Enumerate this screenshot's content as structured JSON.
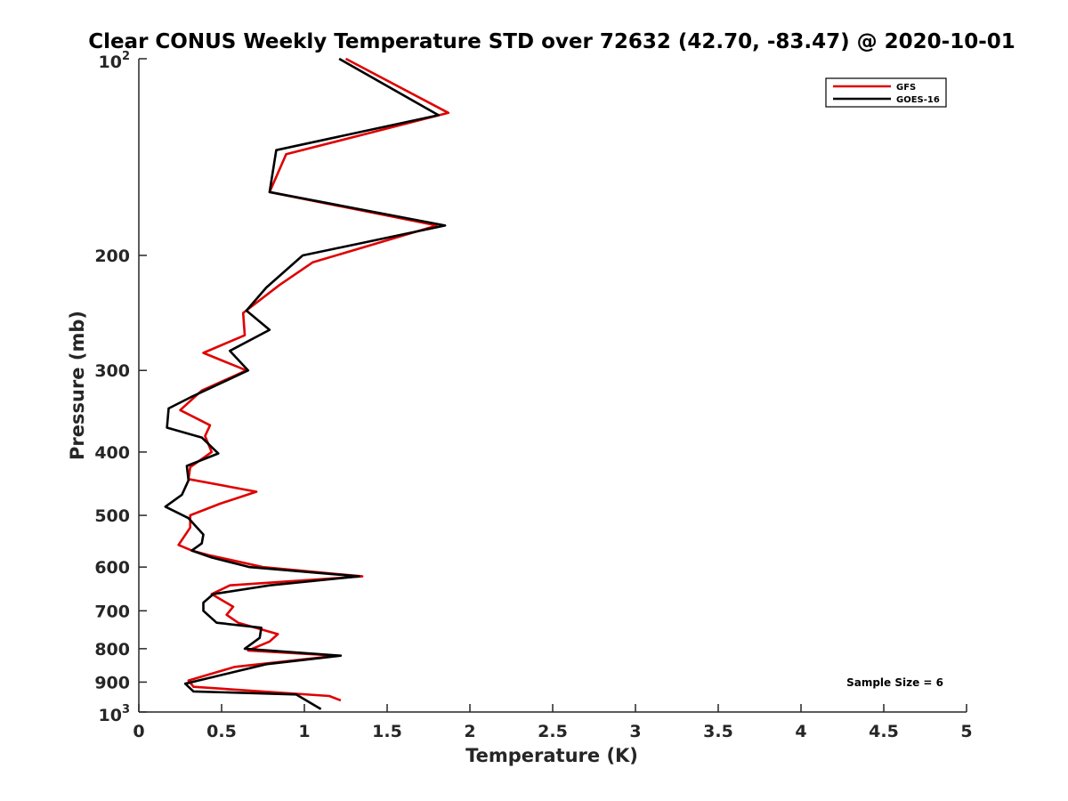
{
  "chart_data": {
    "type": "line",
    "title": "Clear CONUS Weekly Temperature STD over 72632 (42.70, -83.47) @ 2020-10-01",
    "xlabel": "Temperature (K)",
    "ylabel": "Pressure (mb)",
    "xlim": [
      0,
      5
    ],
    "ylim": [
      1000,
      100
    ],
    "y_scale": "log",
    "y_reversed": true,
    "grid": false,
    "legend_position": "top-right",
    "x_ticks": [
      "0",
      "0.5",
      "1",
      "1.5",
      "2",
      "2.5",
      "3",
      "3.5",
      "4",
      "4.5",
      "5"
    ],
    "y_ticks": [
      {
        "value": 100,
        "base": "10",
        "exp": "2"
      },
      {
        "value": 200,
        "label": "200"
      },
      {
        "value": 300,
        "label": "300"
      },
      {
        "value": 400,
        "label": "400"
      },
      {
        "value": 500,
        "label": "500"
      },
      {
        "value": 600,
        "label": "600"
      },
      {
        "value": 700,
        "label": "700"
      },
      {
        "value": 800,
        "label": "800"
      },
      {
        "value": 900,
        "label": "900"
      },
      {
        "value": 1000,
        "base": "10",
        "exp": "3"
      }
    ],
    "annotation": "Sample Size = 6",
    "series": [
      {
        "name": "GFS",
        "color": "#e00000",
        "points": [
          [
            1.25,
            100
          ],
          [
            1.87,
            121
          ],
          [
            0.89,
            140
          ],
          [
            0.79,
            160
          ],
          [
            1.8,
            180
          ],
          [
            1.05,
            205
          ],
          [
            0.85,
            222
          ],
          [
            0.63,
            245
          ],
          [
            0.64,
            265
          ],
          [
            0.39,
            282
          ],
          [
            0.65,
            300
          ],
          [
            0.38,
            322
          ],
          [
            0.25,
            345
          ],
          [
            0.43,
            364
          ],
          [
            0.4,
            378
          ],
          [
            0.44,
            400
          ],
          [
            0.31,
            422
          ],
          [
            0.3,
            440
          ],
          [
            0.71,
            460
          ],
          [
            0.49,
            480
          ],
          [
            0.31,
            500
          ],
          [
            0.31,
            522
          ],
          [
            0.24,
            555
          ],
          [
            0.32,
            566
          ],
          [
            0.42,
            575
          ],
          [
            0.75,
            600
          ],
          [
            1.35,
            620
          ],
          [
            0.55,
            640
          ],
          [
            0.44,
            660
          ],
          [
            0.57,
            690
          ],
          [
            0.53,
            710
          ],
          [
            0.6,
            730
          ],
          [
            0.84,
            760
          ],
          [
            0.79,
            780
          ],
          [
            0.66,
            805
          ],
          [
            1.2,
            820
          ],
          [
            0.58,
            853
          ],
          [
            0.3,
            895
          ],
          [
            0.33,
            915
          ],
          [
            1.15,
            945
          ],
          [
            1.22,
            960
          ]
        ]
      },
      {
        "name": "GOES-16",
        "color": "#000000",
        "points": [
          [
            1.21,
            100
          ],
          [
            1.81,
            122
          ],
          [
            0.83,
            138
          ],
          [
            0.79,
            160
          ],
          [
            1.85,
            180
          ],
          [
            0.99,
            200
          ],
          [
            0.77,
            224
          ],
          [
            0.65,
            243
          ],
          [
            0.79,
            260
          ],
          [
            0.55,
            280
          ],
          [
            0.66,
            300
          ],
          [
            0.31,
            330
          ],
          [
            0.18,
            343
          ],
          [
            0.17,
            367
          ],
          [
            0.38,
            380
          ],
          [
            0.48,
            402
          ],
          [
            0.29,
            420
          ],
          [
            0.3,
            442
          ],
          [
            0.26,
            465
          ],
          [
            0.16,
            485
          ],
          [
            0.3,
            505
          ],
          [
            0.39,
            535
          ],
          [
            0.38,
            552
          ],
          [
            0.32,
            566
          ],
          [
            0.44,
            580
          ],
          [
            0.67,
            600
          ],
          [
            1.33,
            620
          ],
          [
            0.79,
            640
          ],
          [
            0.45,
            660
          ],
          [
            0.39,
            680
          ],
          [
            0.39,
            700
          ],
          [
            0.47,
            730
          ],
          [
            0.74,
            743
          ],
          [
            0.73,
            770
          ],
          [
            0.64,
            800
          ],
          [
            1.22,
            820
          ],
          [
            0.77,
            845
          ],
          [
            0.28,
            905
          ],
          [
            0.33,
            930
          ],
          [
            0.95,
            940
          ],
          [
            1.1,
            990
          ]
        ]
      }
    ]
  }
}
